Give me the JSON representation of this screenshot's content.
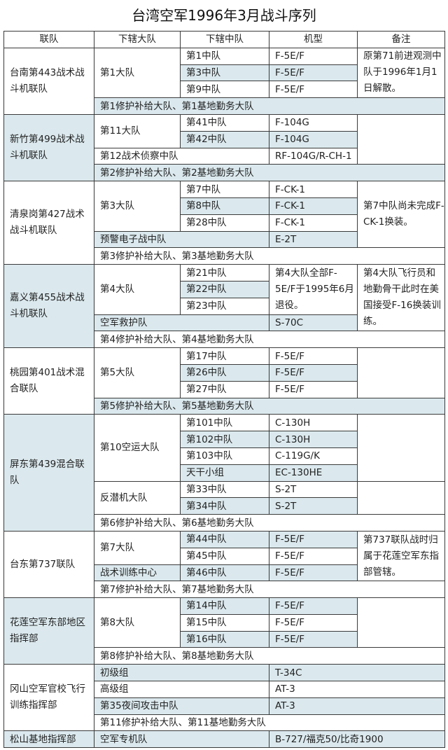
{
  "title": "台湾空军1996年3月战斗序列",
  "shade_color": "#dbe9ee",
  "headers": [
    "联队",
    "下辖大队",
    "下辖中队",
    "机型",
    "备注"
  ],
  "wings": [
    {
      "name": "台南第443战术战斗机联队",
      "groups": [
        "第1大队"
      ],
      "squadrons": [
        "第1中队",
        "第3中队",
        "第9中队"
      ],
      "aircraft": [
        "F-5E/F",
        "F-5E/F",
        "F-5E/F"
      ],
      "remark": "原第71前进观测中队于1996年1月1日解散。",
      "support": "第1修护补给大队、第1基地勤务大队"
    },
    {
      "name": "新竹第499战术战斗机联队",
      "groups": [
        "第11大队",
        "第12战术侦察中队"
      ],
      "squadrons": [
        "第41中队",
        "第42中队"
      ],
      "aircraft": [
        "F-104G",
        "F-104G",
        "RF-104G/R-CH-1"
      ],
      "support": "第2修护补给大队、第2基地勤务大队"
    },
    {
      "name": "清泉岗第427战术战斗机联队",
      "groups": [
        "第3大队",
        "预警电子战中队"
      ],
      "squadrons": [
        "第7中队",
        "第8中队",
        "第28中队"
      ],
      "aircraft": [
        "F-CK-1",
        "F-CK-1",
        "F-CK-1",
        "E-2T"
      ],
      "remark": "第7中队尚未完成F-CK-1换装。",
      "support": "第3修护补给大队、第3基地勤务大队"
    },
    {
      "name": "嘉义第455战术战斗机联队",
      "groups": [
        "第4大队",
        "空军救护队"
      ],
      "squadrons": [
        "第21中队",
        "第22中队",
        "第23中队"
      ],
      "aircraft": [
        "第4大队全部F-5E/F于1995年6月退役。",
        "S-70C"
      ],
      "remark": "第4大队飞行员和地勤骨干此时在美国接受F-16换装训练。",
      "support": "第4修护补给大队、第4基地勤务大队"
    },
    {
      "name": "桃园第401战术混合联队",
      "groups": [
        "第5大队"
      ],
      "squadrons": [
        "第17中队",
        "第26中队",
        "第27中队"
      ],
      "aircraft": [
        "F-5E/F",
        "F-5E/F",
        "F-5E/F"
      ],
      "support": "第5修护补给大队、第5基地勤务大队"
    },
    {
      "name": "屏东第439混合联队",
      "groups": [
        "第10空运大队",
        "反潜机大队"
      ],
      "squadrons": [
        "第101中队",
        "第102中队",
        "第103中队",
        "天干小组",
        "第33中队",
        "第34中队"
      ],
      "aircraft": [
        "C-130H",
        "C-130H",
        "C-119G/K",
        "EC-130HE",
        "S-2T",
        "S-2T"
      ],
      "support": "第6修护补给大队、第6基地勤务大队"
    },
    {
      "name": "台东第737联队",
      "groups": [
        "第7大队",
        "战术训练中心"
      ],
      "squadrons": [
        "第44中队",
        "第45中队",
        "第46中队"
      ],
      "aircraft": [
        "F-5E/F",
        "F-5E/F",
        "F-5E/F"
      ],
      "remark": "第737联队战时归属于花莲空军东指部管辖。",
      "support": "第7修护补给大队、第7基地勤务大队"
    },
    {
      "name": "花莲空军东部地区指挥部",
      "groups": [
        "第8大队"
      ],
      "squadrons": [
        "第14中队",
        "第15中队",
        "第16中队"
      ],
      "aircraft": [
        "F-5E/F",
        "F-5E/F",
        "F-5E/F"
      ],
      "support": "第8修护补给大队、第8基地勤务大队"
    },
    {
      "name": "冈山空军官校飞行训练指挥部",
      "groups": [
        "初级组",
        "高级组",
        "第35夜间攻击中队"
      ],
      "aircraft": [
        "T-34C",
        "AT-3",
        "AT-3"
      ],
      "support": "第11修护补给大队、第11基地勤务大队"
    },
    {
      "name": "松山基地指挥部",
      "groups": [
        "空军专机队"
      ],
      "aircraft": [
        "B-727/福克50/比奇1900"
      ]
    }
  ]
}
